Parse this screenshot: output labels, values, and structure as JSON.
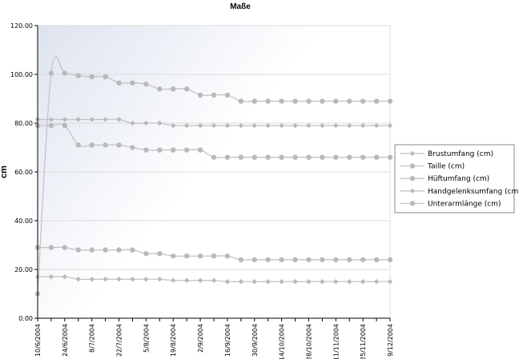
{
  "chart_data": {
    "type": "line",
    "title": "Maße",
    "ylabel": "cm",
    "xlabel": "",
    "ylim": [
      0,
      120
    ],
    "yticks": [
      "0.00",
      "20.00",
      "40.00",
      "60.00",
      "80.00",
      "100.00",
      "120.00"
    ],
    "xtick_labels": [
      "10/6/2004",
      "24/6/2004",
      "8/7/2004",
      "22/7/2004",
      "5/8/2004",
      "19/8/2004",
      "2/9/2004",
      "16/9/2004",
      "30/9/2004",
      "14/10/2004",
      "28/10/2004",
      "11/11/2004",
      "25/11/2004",
      "9/12/2004"
    ],
    "point_count": 27,
    "legend_position": "right",
    "series": [
      {
        "name": "Brustumfang (cm)",
        "marker": "diamond",
        "values": [
          81.5,
          81.5,
          81.5,
          81.5,
          81.5,
          81.5,
          81.5,
          80,
          80,
          80,
          79,
          79,
          79,
          79,
          79,
          79,
          79,
          79,
          79,
          79,
          79,
          79,
          79,
          79,
          79,
          79,
          79
        ]
      },
      {
        "name": "Taille (cm)",
        "marker": "circle",
        "values": [
          10,
          100.5,
          100.5,
          99.5,
          99,
          99,
          96.5,
          96.5,
          96,
          94,
          94,
          94,
          91.5,
          91.5,
          91.5,
          89,
          89,
          89,
          89,
          89,
          89,
          89,
          89,
          89,
          89,
          89,
          89
        ]
      },
      {
        "name": "Hüftumfang (cm)",
        "marker": "circle",
        "values": [
          79,
          79,
          79,
          71,
          71,
          71,
          71,
          70,
          69,
          69,
          69,
          69,
          69,
          66,
          66,
          66,
          66,
          66,
          66,
          66,
          66,
          66,
          66,
          66,
          66,
          66,
          66
        ]
      },
      {
        "name": "Handgelenksumfang (cm)",
        "marker": "diamond",
        "values": [
          17,
          17,
          17,
          16,
          16,
          16,
          16,
          16,
          16,
          16,
          15.5,
          15.5,
          15.5,
          15.5,
          15,
          15,
          15,
          15,
          15,
          15,
          15,
          15,
          15,
          15,
          15,
          15,
          15
        ]
      },
      {
        "name": "Unterarmlänge (cm)",
        "marker": "circle",
        "values": [
          29,
          29,
          29,
          28,
          28,
          28,
          28,
          28,
          26.5,
          26.5,
          25.5,
          25.5,
          25.5,
          25.5,
          25.5,
          24,
          24,
          24,
          24,
          24,
          24,
          24,
          24,
          24,
          24,
          24,
          24
        ]
      }
    ],
    "colors": {
      "line": "#c4c4c4",
      "marker": "#b9b9b9",
      "grid": "#dcdcdc",
      "axis": "#000000",
      "shade_start": "#dde3ef",
      "shade_end": "#ffffff"
    }
  }
}
